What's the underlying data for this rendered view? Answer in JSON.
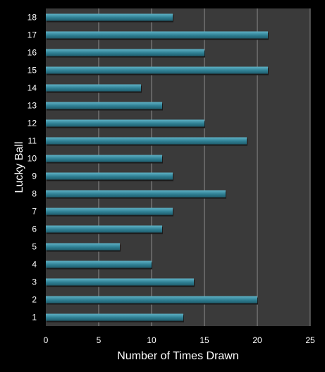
{
  "chart_data": {
    "type": "bar",
    "orientation": "horizontal",
    "categories": [
      "1",
      "2",
      "3",
      "4",
      "5",
      "6",
      "7",
      "8",
      "9",
      "10",
      "11",
      "12",
      "13",
      "14",
      "15",
      "16",
      "17",
      "18"
    ],
    "values": [
      13,
      20,
      14,
      10,
      7,
      11,
      12,
      17,
      12,
      11,
      19,
      15,
      11,
      9,
      21,
      15,
      21,
      12
    ],
    "xlabel": "Number of Times Drawn",
    "ylabel": "Lucky Ball",
    "xlim": [
      0,
      25
    ],
    "xticks": [
      0,
      5,
      10,
      15,
      20,
      25
    ],
    "grid": true,
    "colors": {
      "background": "#000000",
      "plot_background": "#3a3a3a",
      "bar": "#2f7f93",
      "bar_top": "#5fb2c6",
      "bar_bottom": "#1f5d6d",
      "grid": "#8c8c8c",
      "text": "#ffffff"
    }
  }
}
